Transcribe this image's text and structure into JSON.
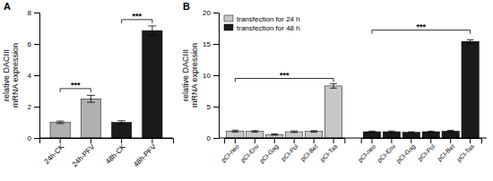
{
  "chart_data": [
    {
      "type": "bar",
      "title": "A",
      "categories": [
        "24h-CK",
        "24h-PFV",
        "48h-CK",
        "48h-PFV"
      ],
      "values": [
        1.0,
        2.5,
        1.0,
        6.85
      ],
      "errors": [
        0.08,
        0.22,
        0.1,
        0.3
      ],
      "colors": [
        "#b0b0b0",
        "#b0b0b0",
        "#1a1a1a",
        "#1a1a1a"
      ],
      "y_label": "relative DACIII\nmRNA expression",
      "ylim": [
        0,
        8
      ],
      "yticks": [
        0,
        2,
        4,
        6,
        8
      ],
      "grid": false,
      "annotations": [
        {
          "text": "***",
          "from": "24h-CK",
          "to": "24h-PFV",
          "y": 3.15
        },
        {
          "text": "***",
          "from": "48h-CK",
          "to": "48h-PFV",
          "y": 7.55
        }
      ]
    },
    {
      "type": "bar",
      "title": "B",
      "series": [
        {
          "name": "transfection for 24 h",
          "color": "#c8c8c8",
          "categories": [
            "pCI-neo",
            "pCI-Env",
            "pCI-Gag",
            "pCI-Pol",
            "pCI-Bet",
            "pCI-Tas"
          ],
          "values": [
            1.1,
            1.05,
            0.55,
            1.0,
            1.05,
            8.3
          ],
          "errors": [
            0.15,
            0.12,
            0.1,
            0.12,
            0.12,
            0.35
          ]
        },
        {
          "name": "transfection for 48 h",
          "color": "#1a1a1a",
          "categories": [
            "pCI-neo",
            "pCI-Env",
            "pCI-Gag",
            "pCI-Pol",
            "pCI-Bet",
            "pCI-Tas"
          ],
          "values": [
            1.0,
            1.0,
            0.9,
            1.0,
            1.1,
            15.4
          ],
          "errors": [
            0.1,
            0.12,
            0.1,
            0.1,
            0.12,
            0.25
          ]
        }
      ],
      "y_label": "relative DACIII\nmRNA expression",
      "ylim": [
        0,
        20
      ],
      "yticks": [
        0,
        5,
        10,
        15,
        20
      ],
      "grid": false,
      "legend": "upper left",
      "annotations": [
        {
          "text": "***",
          "series": "transfection for 24 h",
          "from": "pCI-neo",
          "to": "pCI-Tas",
          "y": 9.5
        },
        {
          "text": "***",
          "series": "transfection for 48 h",
          "from": "pCI-neo",
          "to": "pCI-Tas",
          "y": 17.2
        }
      ]
    }
  ]
}
